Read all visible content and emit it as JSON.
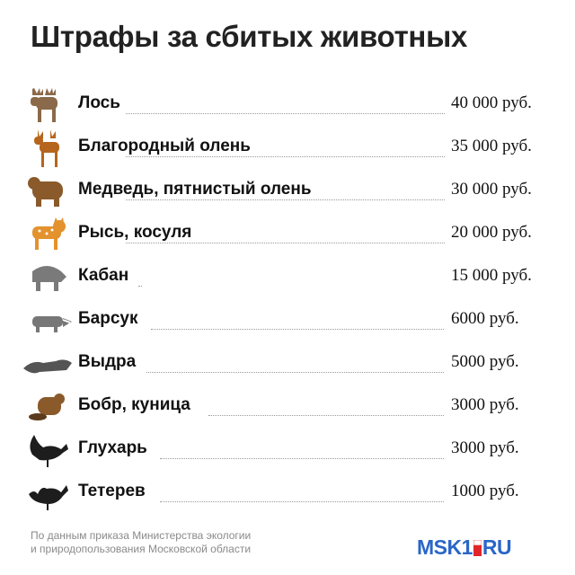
{
  "title": "Штрафы за сбитых животных",
  "rows": [
    {
      "name": "Лось",
      "price": "40 000 руб.",
      "icon": "moose-icon"
    },
    {
      "name": "Благородный олень",
      "price": "35 000 руб.",
      "icon": "red-deer-icon"
    },
    {
      "name": "Медведь, пятнистый олень",
      "price": "30 000 руб.",
      "icon": "bear-icon"
    },
    {
      "name": "Рысь, косуля",
      "price": "20 000 руб.",
      "icon": "lynx-icon"
    },
    {
      "name": "Кабан",
      "price": "15 000 руб.",
      "icon": "boar-icon"
    },
    {
      "name": "Барсук",
      "price": "6000 руб.",
      "icon": "badger-icon"
    },
    {
      "name": "Выдра",
      "price": "5000 руб.",
      "icon": "otter-icon"
    },
    {
      "name": "Бобр, куница",
      "price": "3000 руб.",
      "icon": "beaver-icon"
    },
    {
      "name": "Глухарь",
      "price": "3000 руб.",
      "icon": "capercaillie-icon"
    },
    {
      "name": "Тетерев",
      "price": "1000 руб.",
      "icon": "black-grouse-icon"
    }
  ],
  "footer": {
    "line1": "По данным приказа Министерства экологии",
    "line2": "и природопользования Московской области"
  },
  "logo": {
    "left": "MSK1",
    "right": "RU"
  },
  "colors": {
    "brown": "#8a5a2b",
    "orange": "#d9822b",
    "gray": "#6f6f6f",
    "dark": "#222222",
    "logo_blue": "#2a66c8",
    "logo_red": "#e0262b"
  }
}
